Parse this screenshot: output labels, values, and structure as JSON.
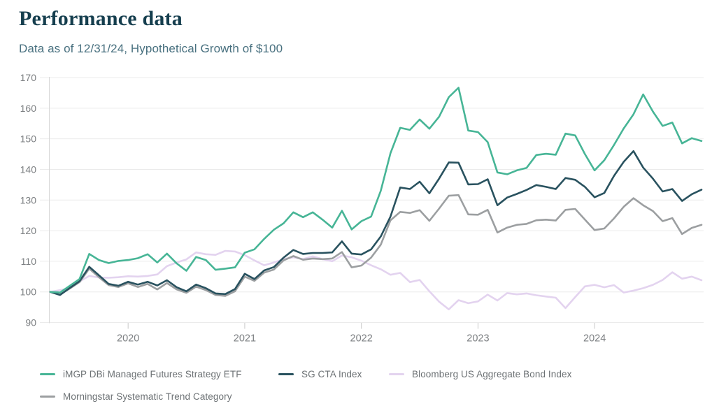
{
  "header": {
    "title": "Performance data",
    "subtitle": "Data as of 12/31/24, Hypothetical Growth of $100"
  },
  "colors": {
    "title_text": "#153e4e",
    "subtitle_text": "#48707f",
    "axis_text": "#7d8083",
    "legend_text": "#6c7174",
    "gridline": "#ebebeb",
    "axis_line": "#d8d8d8",
    "tick_mark": "#c9c9c9"
  },
  "chart_data": {
    "type": "line",
    "title": "Performance data",
    "subtitle": "Data as of 12/31/24, Hypothetical Growth of $100",
    "xlabel": "",
    "ylabel": "",
    "ylim": [
      90,
      170
    ],
    "y_ticks": [
      90,
      100,
      110,
      120,
      130,
      140,
      150,
      160,
      170
    ],
    "x_tick_labels": [
      "2020",
      "2021",
      "2022",
      "2023",
      "2024"
    ],
    "x_tick_indices": [
      8,
      20,
      32,
      44,
      56
    ],
    "x_start": "2019-05",
    "x_end": "2024-12",
    "x_frequency": "monthly",
    "grid": "horizontal-only",
    "legend_position": "bottom",
    "series": [
      {
        "name": "iMGP DBi Managed Futures Strategy ETF",
        "color": "#47b596",
        "values": [
          100,
          99.8,
          102,
          104.2,
          112.4,
          110.4,
          109.4,
          110.1,
          110.4,
          111,
          112.3,
          109.6,
          112.5,
          109.3,
          106.9,
          111.4,
          110.4,
          107.2,
          107.6,
          108,
          112.8,
          113.9,
          117.3,
          120.3,
          122.4,
          126,
          124.4,
          126,
          123.6,
          121,
          126.5,
          120.4,
          123.1,
          124.6,
          133,
          145.3,
          153.6,
          152.9,
          156.3,
          153.3,
          157.2,
          163.6,
          166.7,
          152.7,
          152.2,
          148.9,
          139,
          138.4,
          139.7,
          140.5,
          144.7,
          145.1,
          144.8,
          151.7,
          151.1,
          145,
          139.7,
          143,
          148,
          153.4,
          158,
          164.5,
          158.9,
          154.2,
          155.3,
          148.5,
          150.2,
          149.3
        ]
      },
      {
        "name": "SG CTA Index",
        "color": "#29525f",
        "values": [
          100,
          99,
          101.3,
          103.5,
          108.2,
          105.4,
          102.6,
          102,
          103.3,
          102.4,
          103.3,
          102.1,
          103.8,
          101.5,
          100.2,
          102.4,
          101.2,
          99.5,
          99.3,
          100.9,
          105.9,
          104.2,
          107,
          108.1,
          111.2,
          113.7,
          112.4,
          112.7,
          112.7,
          112.9,
          116.5,
          112.5,
          112.2,
          113.9,
          118.1,
          124.6,
          134.1,
          133.6,
          136,
          132.2,
          137,
          142.3,
          142.2,
          135.1,
          135.2,
          136.8,
          128.3,
          130.8,
          132,
          133.3,
          134.9,
          134.3,
          133.6,
          137.2,
          136.6,
          134.3,
          130.9,
          132.3,
          137.9,
          142.5,
          146,
          140.6,
          137,
          132.8,
          133.6,
          129.7,
          131.9,
          133.4
        ]
      },
      {
        "name": "Bloomberg US Aggregate Bond Index",
        "color": "#e3d3ef",
        "values": [
          100,
          100.6,
          101.2,
          103.4,
          105.2,
          104.7,
          104.6,
          104.8,
          105.1,
          105,
          105.2,
          105.7,
          108.4,
          109.6,
          110.6,
          112.9,
          112.3,
          112.1,
          113.4,
          113.2,
          112,
          110.3,
          108.7,
          109.6,
          110.7,
          111.3,
          110.7,
          111.6,
          110.7,
          110,
          111.9,
          111.3,
          110.2,
          108.7,
          107.4,
          105.6,
          106.2,
          103.2,
          103.9,
          100.2,
          96.8,
          94.3,
          97.3,
          96.3,
          96.9,
          99.1,
          97.2,
          99.6,
          99.2,
          99.5,
          98.9,
          98.5,
          98.1,
          94.7,
          98.3,
          101.8,
          102.3,
          101.5,
          102.2,
          99.8,
          100.4,
          101.2,
          102.3,
          103.9,
          106.4,
          104.3,
          105,
          103.8
        ]
      },
      {
        "name": "Morningstar Systematic Trend Category",
        "color": "#9c9fa1",
        "values": [
          100,
          99.2,
          101.1,
          103.2,
          107.6,
          104.8,
          102.2,
          101.6,
          102.8,
          101.6,
          102.6,
          100.8,
          102.9,
          100.8,
          99.7,
          101.7,
          100.6,
          99,
          98.7,
          100.2,
          105,
          103.6,
          106.3,
          107.3,
          110.3,
          111.7,
          110.5,
          110.9,
          110.7,
          110.9,
          113,
          108,
          108.6,
          111.2,
          115.4,
          123.4,
          126.1,
          125.8,
          126.7,
          123.2,
          127.2,
          131.4,
          131.6,
          125.3,
          125.2,
          126.8,
          119.4,
          121,
          121.9,
          122.2,
          123.4,
          123.6,
          123.3,
          126.8,
          127.1,
          123.6,
          120.2,
          120.7,
          124,
          127.8,
          130.6,
          128.3,
          126.4,
          123.1,
          124.1,
          118.9,
          120.9,
          121.9
        ]
      }
    ]
  },
  "legend": {
    "items": [
      {
        "label": "iMGP DBi Managed Futures Strategy ETF"
      },
      {
        "label": "SG CTA Index"
      },
      {
        "label": "Bloomberg US Aggregate Bond Index"
      },
      {
        "label": "Morningstar Systematic Trend Category"
      }
    ]
  }
}
